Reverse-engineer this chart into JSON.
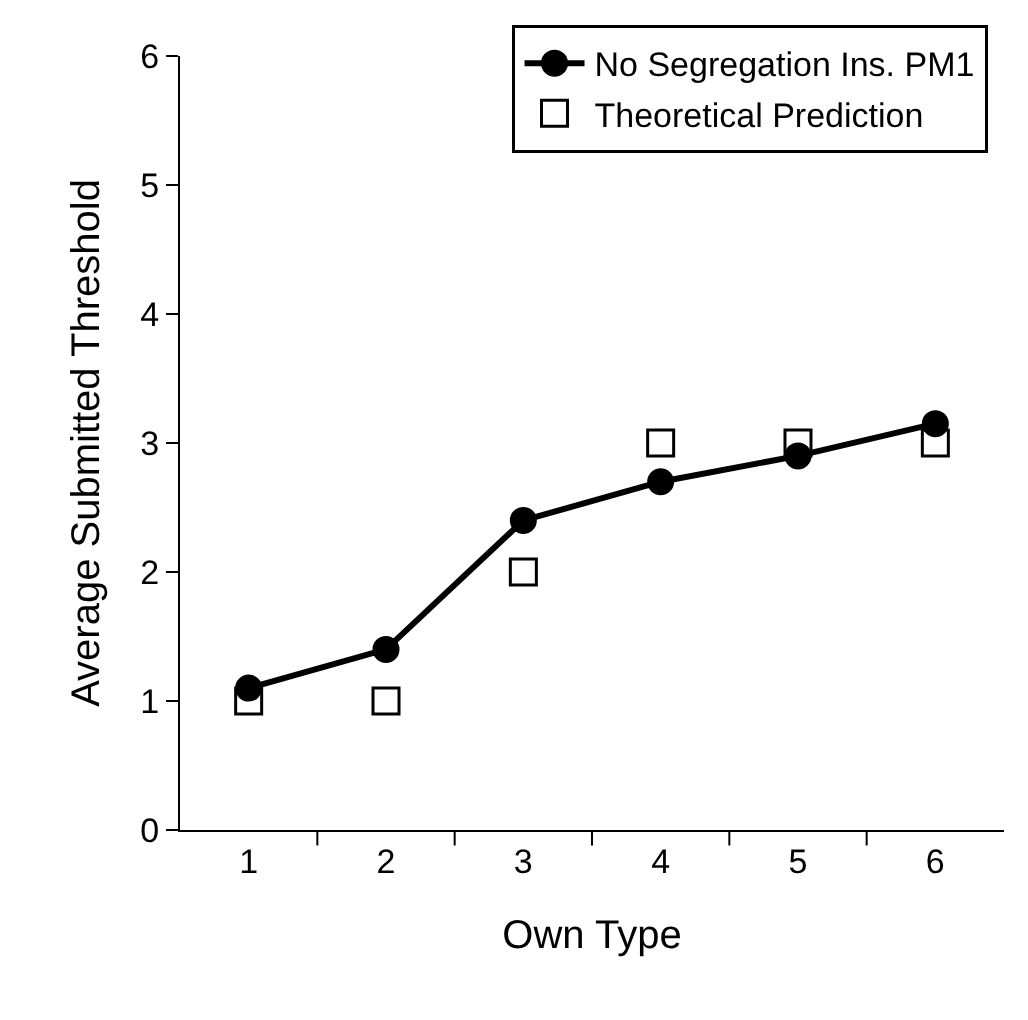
{
  "chart_data": {
    "type": "line",
    "xlabel": "Own Type",
    "ylabel": "Average Submitted Threshold",
    "categories": [
      "1",
      "2",
      "3",
      "4",
      "5",
      "6"
    ],
    "series": [
      {
        "name": "No Segregation Ins. PM1",
        "type": "line",
        "color": "#000000",
        "marker": "circle",
        "line_style": "solid",
        "values": [
          1.1,
          1.4,
          2.4,
          2.7,
          2.9,
          3.15
        ]
      },
      {
        "name": "Theoretical Prediction",
        "type": "scatter",
        "color": "#000000",
        "marker": "square",
        "values": [
          1,
          1,
          2,
          3,
          3,
          3
        ]
      }
    ],
    "ylim": [
      0,
      6
    ],
    "yticks": [
      0,
      1,
      2,
      3,
      4,
      5,
      6
    ],
    "grid": false,
    "legend": "top right"
  }
}
